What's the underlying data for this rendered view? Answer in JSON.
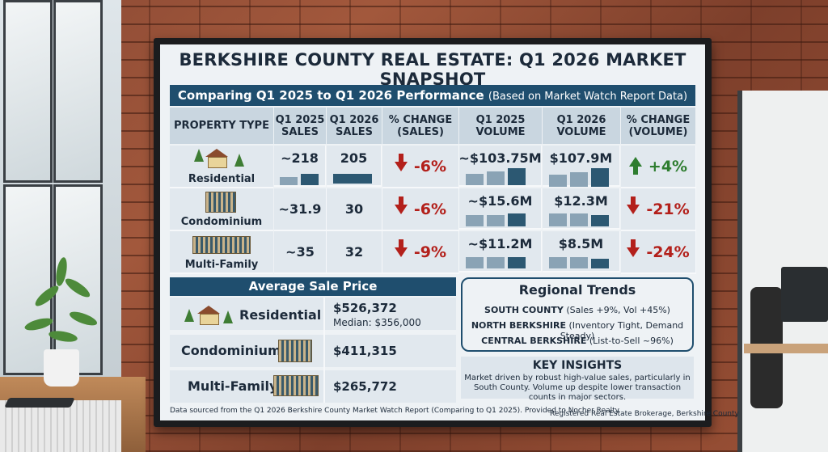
{
  "title": "BERKSHIRE COUNTY REAL ESTATE: Q1 2026 MARKET SNAPSHOT",
  "subtitle": "Comparing Q1 2025 to Q1 2026 Performance",
  "subtitle_note": "(Based on Market Watch Report Data)",
  "headers": {
    "property_type": "PROPERTY TYPE",
    "q1_2025_sales": [
      "Q1 2025",
      "SALES"
    ],
    "q1_2026_sales": [
      "Q1 2026",
      "SALES"
    ],
    "pct_change_sales": [
      "% CHANGE",
      "(SALES)"
    ],
    "q1_2025_volume": [
      "Q1 2025",
      "VOLUME"
    ],
    "q1_2026_volume": [
      "Q1 2026",
      "VOLUME"
    ],
    "pct_change_volume": [
      "% CHANGE",
      "(VOLUME)"
    ]
  },
  "rows": [
    {
      "type": "Residential",
      "sales_2025": "~218",
      "sales_2026": "205",
      "sales_change": "-6%",
      "sales_dir": "down",
      "vol_2025": "~$103.75M",
      "vol_2026": "$107.9M",
      "vol_change": "+4%",
      "vol_dir": "up"
    },
    {
      "type": "Condominium",
      "sales_2025": "~31.9",
      "sales_2026": "30",
      "sales_change": "-6%",
      "sales_dir": "down",
      "vol_2025": "~$15.6M",
      "vol_2026": "$12.3M",
      "vol_change": "-21%",
      "vol_dir": "down"
    },
    {
      "type": "Multi-Family",
      "sales_2025": "~35",
      "sales_2026": "32",
      "sales_change": "-9%",
      "sales_dir": "down",
      "vol_2025": "~$11.2M",
      "vol_2026": "$8.5M",
      "vol_change": "-24%",
      "vol_dir": "down"
    }
  ],
  "avg_price": {
    "heading": "Average Sale Price",
    "items": [
      {
        "type": "Residential",
        "price": "$526,372",
        "median": "Median: $356,000"
      },
      {
        "type": "Condominium",
        "price": "$411,315"
      },
      {
        "type": "Multi-Family",
        "price": "$265,772"
      }
    ]
  },
  "regional": {
    "heading": "Regional Trends",
    "items": [
      {
        "region": "SOUTH COUNTY",
        "detail": "(Sales +9%, Vol +45%)"
      },
      {
        "region": "NORTH BERKSHIRE",
        "detail": "(Inventory Tight, Demand Steady)"
      },
      {
        "region": "CENTRAL BERKSHIRE",
        "detail": "(List-to-Sell ~96%)"
      }
    ]
  },
  "insights": {
    "heading": "KEY INSIGHTS",
    "text": "Market driven by robust high-value sales, particularly in South County. Volume up despite lower transaction counts in major sectors."
  },
  "footer_left": "Data sourced from the Q1 2026 Berkshire County Market Watch Report (Comparing to Q1 2025). Provided to Nocher Realty.",
  "footer_right": "Registered Real Estate Brokerage, Berkshire County",
  "colors": {
    "navy": "#1f4e6e",
    "up": "#2e7d2f",
    "down": "#b3201b"
  }
}
